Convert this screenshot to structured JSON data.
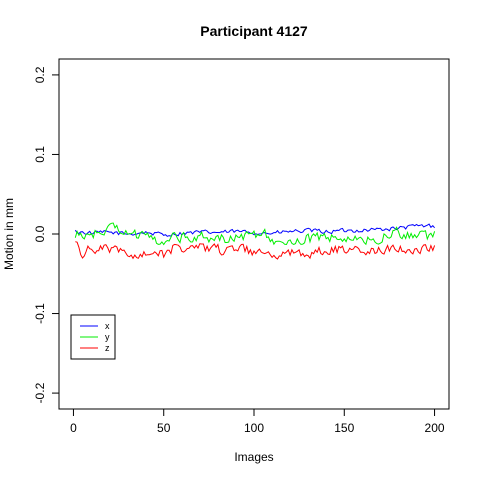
{
  "chart_data": {
    "type": "line",
    "title": "Participant 4127",
    "xlabel": "Images",
    "ylabel": "Motion in mm",
    "xlim": [
      -8,
      208
    ],
    "ylim": [
      -0.22,
      0.22
    ],
    "x_ticks": [
      0,
      50,
      100,
      150,
      200
    ],
    "y_ticks": [
      -0.2,
      -0.1,
      0.0,
      0.1,
      0.2
    ],
    "y_tick_labels": [
      "-0.2",
      "-0.1",
      "0.0",
      "0.1",
      "0.2"
    ],
    "legend_position": "bottom-left",
    "n_points": 200,
    "series": [
      {
        "name": "x",
        "color": "#0000ff",
        "anchors": [
          [
            1,
            0.003
          ],
          [
            10,
            0.001
          ],
          [
            20,
            0.002
          ],
          [
            30,
            0.0
          ],
          [
            40,
            0.002
          ],
          [
            50,
            -0.001
          ],
          [
            60,
            0.001
          ],
          [
            70,
            0.002
          ],
          [
            80,
            0.002
          ],
          [
            90,
            0.003
          ],
          [
            100,
            0.002
          ],
          [
            110,
            0.001
          ],
          [
            120,
            0.003
          ],
          [
            130,
            0.004
          ],
          [
            140,
            0.003
          ],
          [
            150,
            0.004
          ],
          [
            160,
            0.005
          ],
          [
            170,
            0.006
          ],
          [
            180,
            0.007
          ],
          [
            190,
            0.01
          ],
          [
            200,
            0.01
          ]
        ],
        "amplitude": 0.0025
      },
      {
        "name": "y",
        "color": "#00ee00",
        "anchors": [
          [
            1,
            -0.002
          ],
          [
            10,
            0.0
          ],
          [
            20,
            0.006
          ],
          [
            25,
            0.008
          ],
          [
            30,
            0.002
          ],
          [
            40,
            -0.005
          ],
          [
            50,
            -0.008
          ],
          [
            55,
            0.0
          ],
          [
            60,
            -0.004
          ],
          [
            70,
            -0.002
          ],
          [
            80,
            -0.006
          ],
          [
            90,
            -0.004
          ],
          [
            100,
            -0.002
          ],
          [
            105,
            0.005
          ],
          [
            110,
            -0.007
          ],
          [
            120,
            -0.008
          ],
          [
            130,
            -0.006
          ],
          [
            140,
            -0.005
          ],
          [
            150,
            -0.004
          ],
          [
            160,
            -0.01
          ],
          [
            170,
            -0.004
          ],
          [
            180,
            0.002
          ],
          [
            190,
            -0.004
          ],
          [
            200,
            -0.002
          ]
        ],
        "amplitude": 0.006
      },
      {
        "name": "z",
        "color": "#ff0000",
        "anchors": [
          [
            1,
            -0.012
          ],
          [
            5,
            -0.025
          ],
          [
            10,
            -0.018
          ],
          [
            20,
            -0.02
          ],
          [
            30,
            -0.025
          ],
          [
            40,
            -0.022
          ],
          [
            50,
            -0.025
          ],
          [
            55,
            -0.018
          ],
          [
            60,
            -0.022
          ],
          [
            70,
            -0.018
          ],
          [
            80,
            -0.02
          ],
          [
            90,
            -0.02
          ],
          [
            100,
            -0.022
          ],
          [
            110,
            -0.025
          ],
          [
            120,
            -0.022
          ],
          [
            130,
            -0.024
          ],
          [
            140,
            -0.022
          ],
          [
            150,
            -0.02
          ],
          [
            160,
            -0.024
          ],
          [
            170,
            -0.02
          ],
          [
            180,
            -0.02
          ],
          [
            190,
            -0.018
          ],
          [
            200,
            -0.015
          ]
        ],
        "amplitude": 0.006
      }
    ]
  }
}
